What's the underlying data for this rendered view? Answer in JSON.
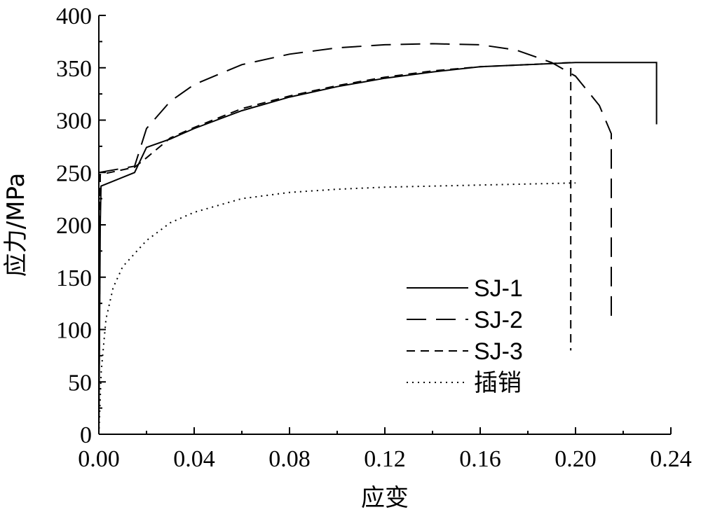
{
  "chart_data": {
    "type": "line",
    "title": "",
    "xlabel": "应变",
    "ylabel": "应力/MPa",
    "xlim": [
      0,
      0.24
    ],
    "ylim": [
      0,
      400
    ],
    "xticks": [
      "0.00",
      "0.04",
      "0.08",
      "0.12",
      "0.16",
      "0.20",
      "0.24"
    ],
    "yticks": [
      "0",
      "50",
      "100",
      "150",
      "200",
      "250",
      "300",
      "350",
      "400"
    ],
    "grid": false,
    "legend_position": "bottom-right",
    "series": [
      {
        "name": "SJ-1",
        "style": "solid",
        "points": [
          [
            0.0,
            0
          ],
          [
            0.0003,
            100
          ],
          [
            0.0006,
            200
          ],
          [
            0.0009,
            237
          ],
          [
            0.015,
            250
          ],
          [
            0.02,
            274
          ],
          [
            0.03,
            282
          ],
          [
            0.04,
            292
          ],
          [
            0.06,
            309
          ],
          [
            0.08,
            322
          ],
          [
            0.1,
            332
          ],
          [
            0.12,
            340
          ],
          [
            0.14,
            346
          ],
          [
            0.16,
            351
          ],
          [
            0.18,
            353
          ],
          [
            0.2,
            355
          ],
          [
            0.234,
            355
          ],
          [
            0.234,
            296
          ]
        ]
      },
      {
        "name": "SJ-2",
        "style": "long-dash",
        "points": [
          [
            0.0,
            250
          ],
          [
            0.015,
            256
          ],
          [
            0.02,
            292
          ],
          [
            0.03,
            318
          ],
          [
            0.04,
            334
          ],
          [
            0.06,
            353
          ],
          [
            0.08,
            363
          ],
          [
            0.1,
            369
          ],
          [
            0.12,
            372
          ],
          [
            0.14,
            373
          ],
          [
            0.16,
            372
          ],
          [
            0.175,
            367
          ],
          [
            0.19,
            355
          ],
          [
            0.2,
            342
          ],
          [
            0.21,
            314
          ],
          [
            0.215,
            287
          ],
          [
            0.215,
            105
          ]
        ]
      },
      {
        "name": "SJ-3",
        "style": "short-dash",
        "points": [
          [
            0.0,
            0
          ],
          [
            0.0003,
            120
          ],
          [
            0.0006,
            248
          ],
          [
            0.015,
            255
          ],
          [
            0.02,
            264
          ],
          [
            0.03,
            283
          ],
          [
            0.04,
            293
          ],
          [
            0.06,
            311
          ],
          [
            0.08,
            323
          ],
          [
            0.1,
            333
          ],
          [
            0.12,
            341
          ],
          [
            0.14,
            347
          ],
          [
            0.16,
            351
          ],
          [
            0.18,
            353
          ],
          [
            0.198,
            355
          ],
          [
            0.198,
            80
          ]
        ]
      },
      {
        "name": "插销",
        "style": "dotted",
        "points": [
          [
            0.0,
            0
          ],
          [
            0.001,
            60
          ],
          [
            0.003,
            110
          ],
          [
            0.006,
            140
          ],
          [
            0.01,
            160
          ],
          [
            0.02,
            185
          ],
          [
            0.03,
            202
          ],
          [
            0.04,
            212
          ],
          [
            0.06,
            225
          ],
          [
            0.08,
            231
          ],
          [
            0.1,
            234
          ],
          [
            0.12,
            236
          ],
          [
            0.14,
            237
          ],
          [
            0.16,
            238
          ],
          [
            0.18,
            239
          ],
          [
            0.2,
            240
          ]
        ]
      }
    ],
    "colors": {
      "line": "#000000",
      "background": "#ffffff"
    }
  }
}
